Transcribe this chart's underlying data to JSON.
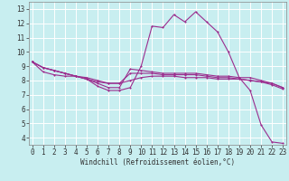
{
  "xlabel": "Windchill (Refroidissement éolien,°C)",
  "background_color": "#c8eef0",
  "grid_color": "#ffffff",
  "line_color": "#9b2d8e",
  "x_ticks": [
    0,
    1,
    2,
    3,
    4,
    5,
    6,
    7,
    8,
    9,
    10,
    11,
    12,
    13,
    14,
    15,
    16,
    17,
    18,
    19,
    20,
    21,
    22,
    23
  ],
  "y_ticks": [
    4,
    5,
    6,
    7,
    8,
    9,
    10,
    11,
    12,
    13
  ],
  "xlim": [
    -0.3,
    23.3
  ],
  "ylim": [
    3.5,
    13.5
  ],
  "curve1_x": [
    0,
    1,
    2,
    3,
    4,
    5,
    6,
    7,
    8,
    9,
    10,
    11,
    12,
    13,
    14,
    15,
    16,
    17,
    18,
    19,
    20,
    21,
    22,
    23
  ],
  "curve1_y": [
    9.3,
    8.9,
    8.7,
    8.5,
    8.3,
    8.1,
    7.6,
    7.3,
    7.3,
    7.5,
    9.0,
    11.8,
    11.7,
    12.6,
    12.1,
    12.8,
    12.1,
    11.4,
    10.0,
    8.2,
    7.3,
    4.9,
    3.7,
    3.6
  ],
  "curve2_x": [
    0,
    1,
    2,
    3,
    4,
    5,
    6,
    7,
    8,
    9,
    10,
    11,
    12,
    13,
    14,
    15,
    16,
    17,
    18,
    19,
    20,
    21,
    22,
    23
  ],
  "curve2_y": [
    9.3,
    8.9,
    8.7,
    8.5,
    8.3,
    8.1,
    7.8,
    7.5,
    7.5,
    8.8,
    8.7,
    8.6,
    8.5,
    8.5,
    8.5,
    8.5,
    8.4,
    8.3,
    8.3,
    8.2,
    8.2,
    8.0,
    7.8,
    7.5
  ],
  "curve3_x": [
    0,
    1,
    2,
    3,
    4,
    5,
    6,
    7,
    8,
    9,
    10,
    11,
    12,
    13,
    14,
    15,
    16,
    17,
    18,
    19,
    20,
    21,
    22,
    23
  ],
  "curve3_y": [
    9.3,
    8.9,
    8.7,
    8.5,
    8.3,
    8.2,
    8.0,
    7.8,
    7.8,
    8.5,
    8.5,
    8.5,
    8.4,
    8.4,
    8.4,
    8.4,
    8.3,
    8.2,
    8.2,
    8.1,
    8.0,
    7.9,
    7.7,
    7.4
  ],
  "curve4_x": [
    0,
    1,
    2,
    3,
    4,
    5,
    6,
    7,
    8,
    9,
    10,
    11,
    12,
    13,
    14,
    15,
    16,
    17,
    18,
    19,
    20,
    21,
    22,
    23
  ],
  "curve4_y": [
    9.3,
    8.6,
    8.4,
    8.3,
    8.3,
    8.1,
    7.9,
    7.8,
    7.8,
    8.0,
    8.2,
    8.3,
    8.3,
    8.3,
    8.2,
    8.2,
    8.2,
    8.1,
    8.1,
    8.1,
    8.0,
    7.9,
    7.8,
    7.5
  ],
  "tick_fontsize": 5.5,
  "xlabel_fontsize": 5.5
}
